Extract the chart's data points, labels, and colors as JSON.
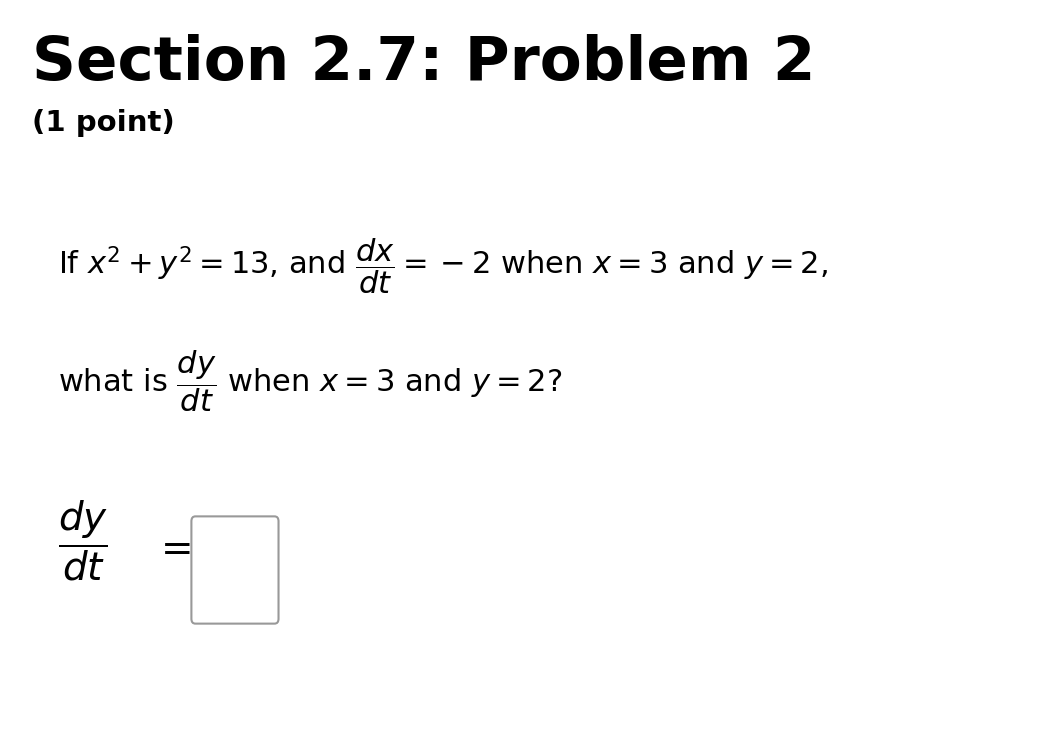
{
  "title": "Section 2.7: Problem 2",
  "subtitle": "(1 point)",
  "title_fontsize": 44,
  "subtitle_fontsize": 21,
  "background_color": "#ffffff",
  "box_color": "#e8e8e8",
  "line1": "If $x^2 + y^2 = 13$, and $\\dfrac{dx}{dt} = -2$ when $x = 3$ and $y = 2$,",
  "line2": "what is $\\dfrac{dy}{dt}$ when $x = 3$ and $y = 2$?",
  "answer_label": "$\\dfrac{dy}{dt}$",
  "equals": "$=$",
  "text_fontsize": 22,
  "answer_fontsize": 28
}
